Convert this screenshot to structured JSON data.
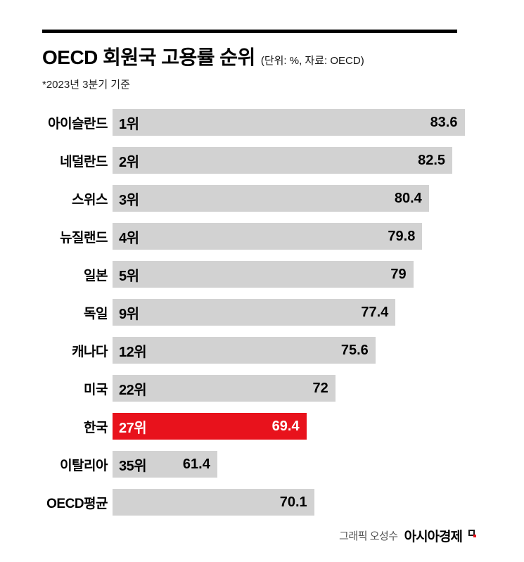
{
  "header": {
    "title": "OECD 회원국 고용률 순위",
    "title_note": "(단위: %, 자료: OECD)",
    "subtitle": "*2023년 3분기 기준"
  },
  "chart_data": {
    "type": "bar",
    "orientation": "horizontal",
    "title": "OECD 회원국 고용률 순위",
    "unit": "%",
    "source": "OECD",
    "note": "2023년 3분기 기준",
    "xlim": [
      52,
      84.2
    ],
    "grid": false,
    "legend": false,
    "colors": {
      "bar": "#d2d2d2",
      "highlight": "#e8121c",
      "highlight_text": "#ffffff",
      "text": "#000000"
    },
    "rows": [
      {
        "country": "아이슬란드",
        "rank": "1위",
        "value": 83.6,
        "display": "83.6",
        "highlight": false
      },
      {
        "country": "네덜란드",
        "rank": "2위",
        "value": 82.5,
        "display": "82.5",
        "highlight": false
      },
      {
        "country": "스위스",
        "rank": "3위",
        "value": 80.4,
        "display": "80.4",
        "highlight": false
      },
      {
        "country": "뉴질랜드",
        "rank": "4위",
        "value": 79.8,
        "display": "79.8",
        "highlight": false
      },
      {
        "country": "일본",
        "rank": "5위",
        "value": 79,
        "display": "79",
        "highlight": false
      },
      {
        "country": "독일",
        "rank": "9위",
        "value": 77.4,
        "display": "77.4",
        "highlight": false
      },
      {
        "country": "캐나다",
        "rank": "12위",
        "value": 75.6,
        "display": "75.6",
        "highlight": false
      },
      {
        "country": "미국",
        "rank": "22위",
        "value": 72,
        "display": "72",
        "highlight": false
      },
      {
        "country": "한국",
        "rank": "27위",
        "value": 69.4,
        "display": "69.4",
        "highlight": true
      },
      {
        "country": "이탈리아",
        "rank": "35위",
        "value": 61.4,
        "display": "61.4",
        "highlight": false
      },
      {
        "country": "OECD평균",
        "rank": "",
        "value": 70.1,
        "display": "70.1",
        "highlight": false
      }
    ]
  },
  "footer": {
    "credit": "그래픽 오성수",
    "brand": "아시아경제"
  }
}
